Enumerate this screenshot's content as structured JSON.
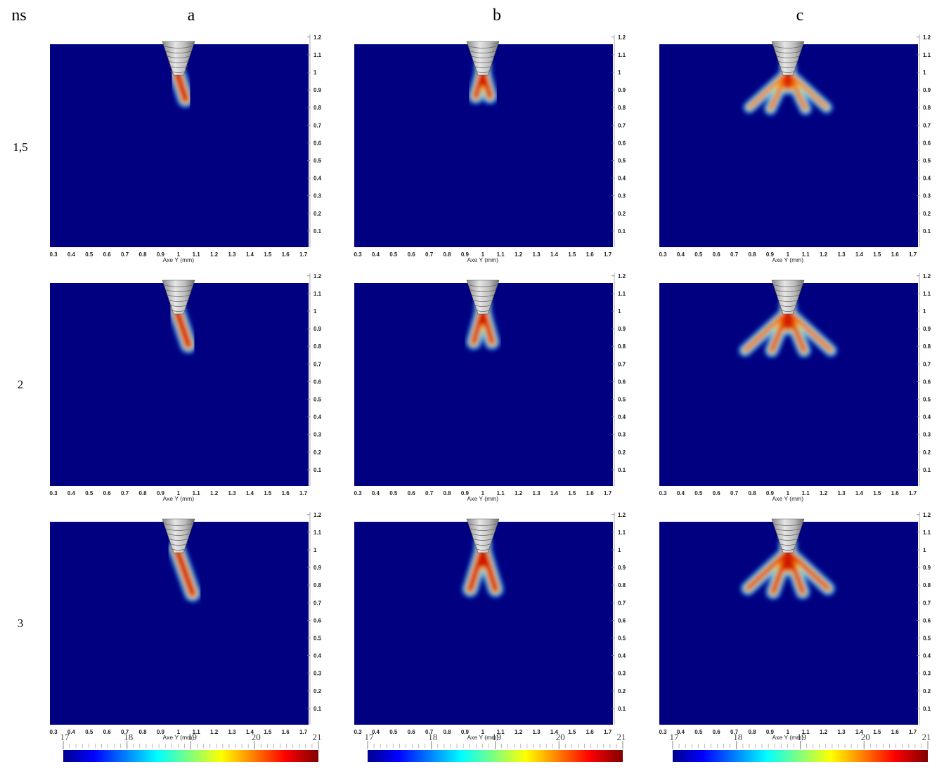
{
  "corner_label": "ns",
  "columns": [
    "a",
    "b",
    "c"
  ],
  "rows": [
    "1,5",
    "2",
    "3"
  ],
  "x_axis": {
    "label": "Axe Y (mm)",
    "ticks": [
      0.3,
      0.4,
      0.5,
      0.6,
      0.7,
      0.8,
      0.9,
      1,
      1.1,
      1.2,
      1.3,
      1.4,
      1.5,
      1.6,
      1.7
    ]
  },
  "y_axis": {
    "ticks": [
      0.1,
      0.2,
      0.3,
      0.4,
      0.5,
      0.6,
      0.7,
      0.8,
      0.9,
      1,
      1.1,
      1.2
    ]
  },
  "colorbar": {
    "ticks": [
      17,
      18,
      19,
      20,
      21
    ]
  }
}
